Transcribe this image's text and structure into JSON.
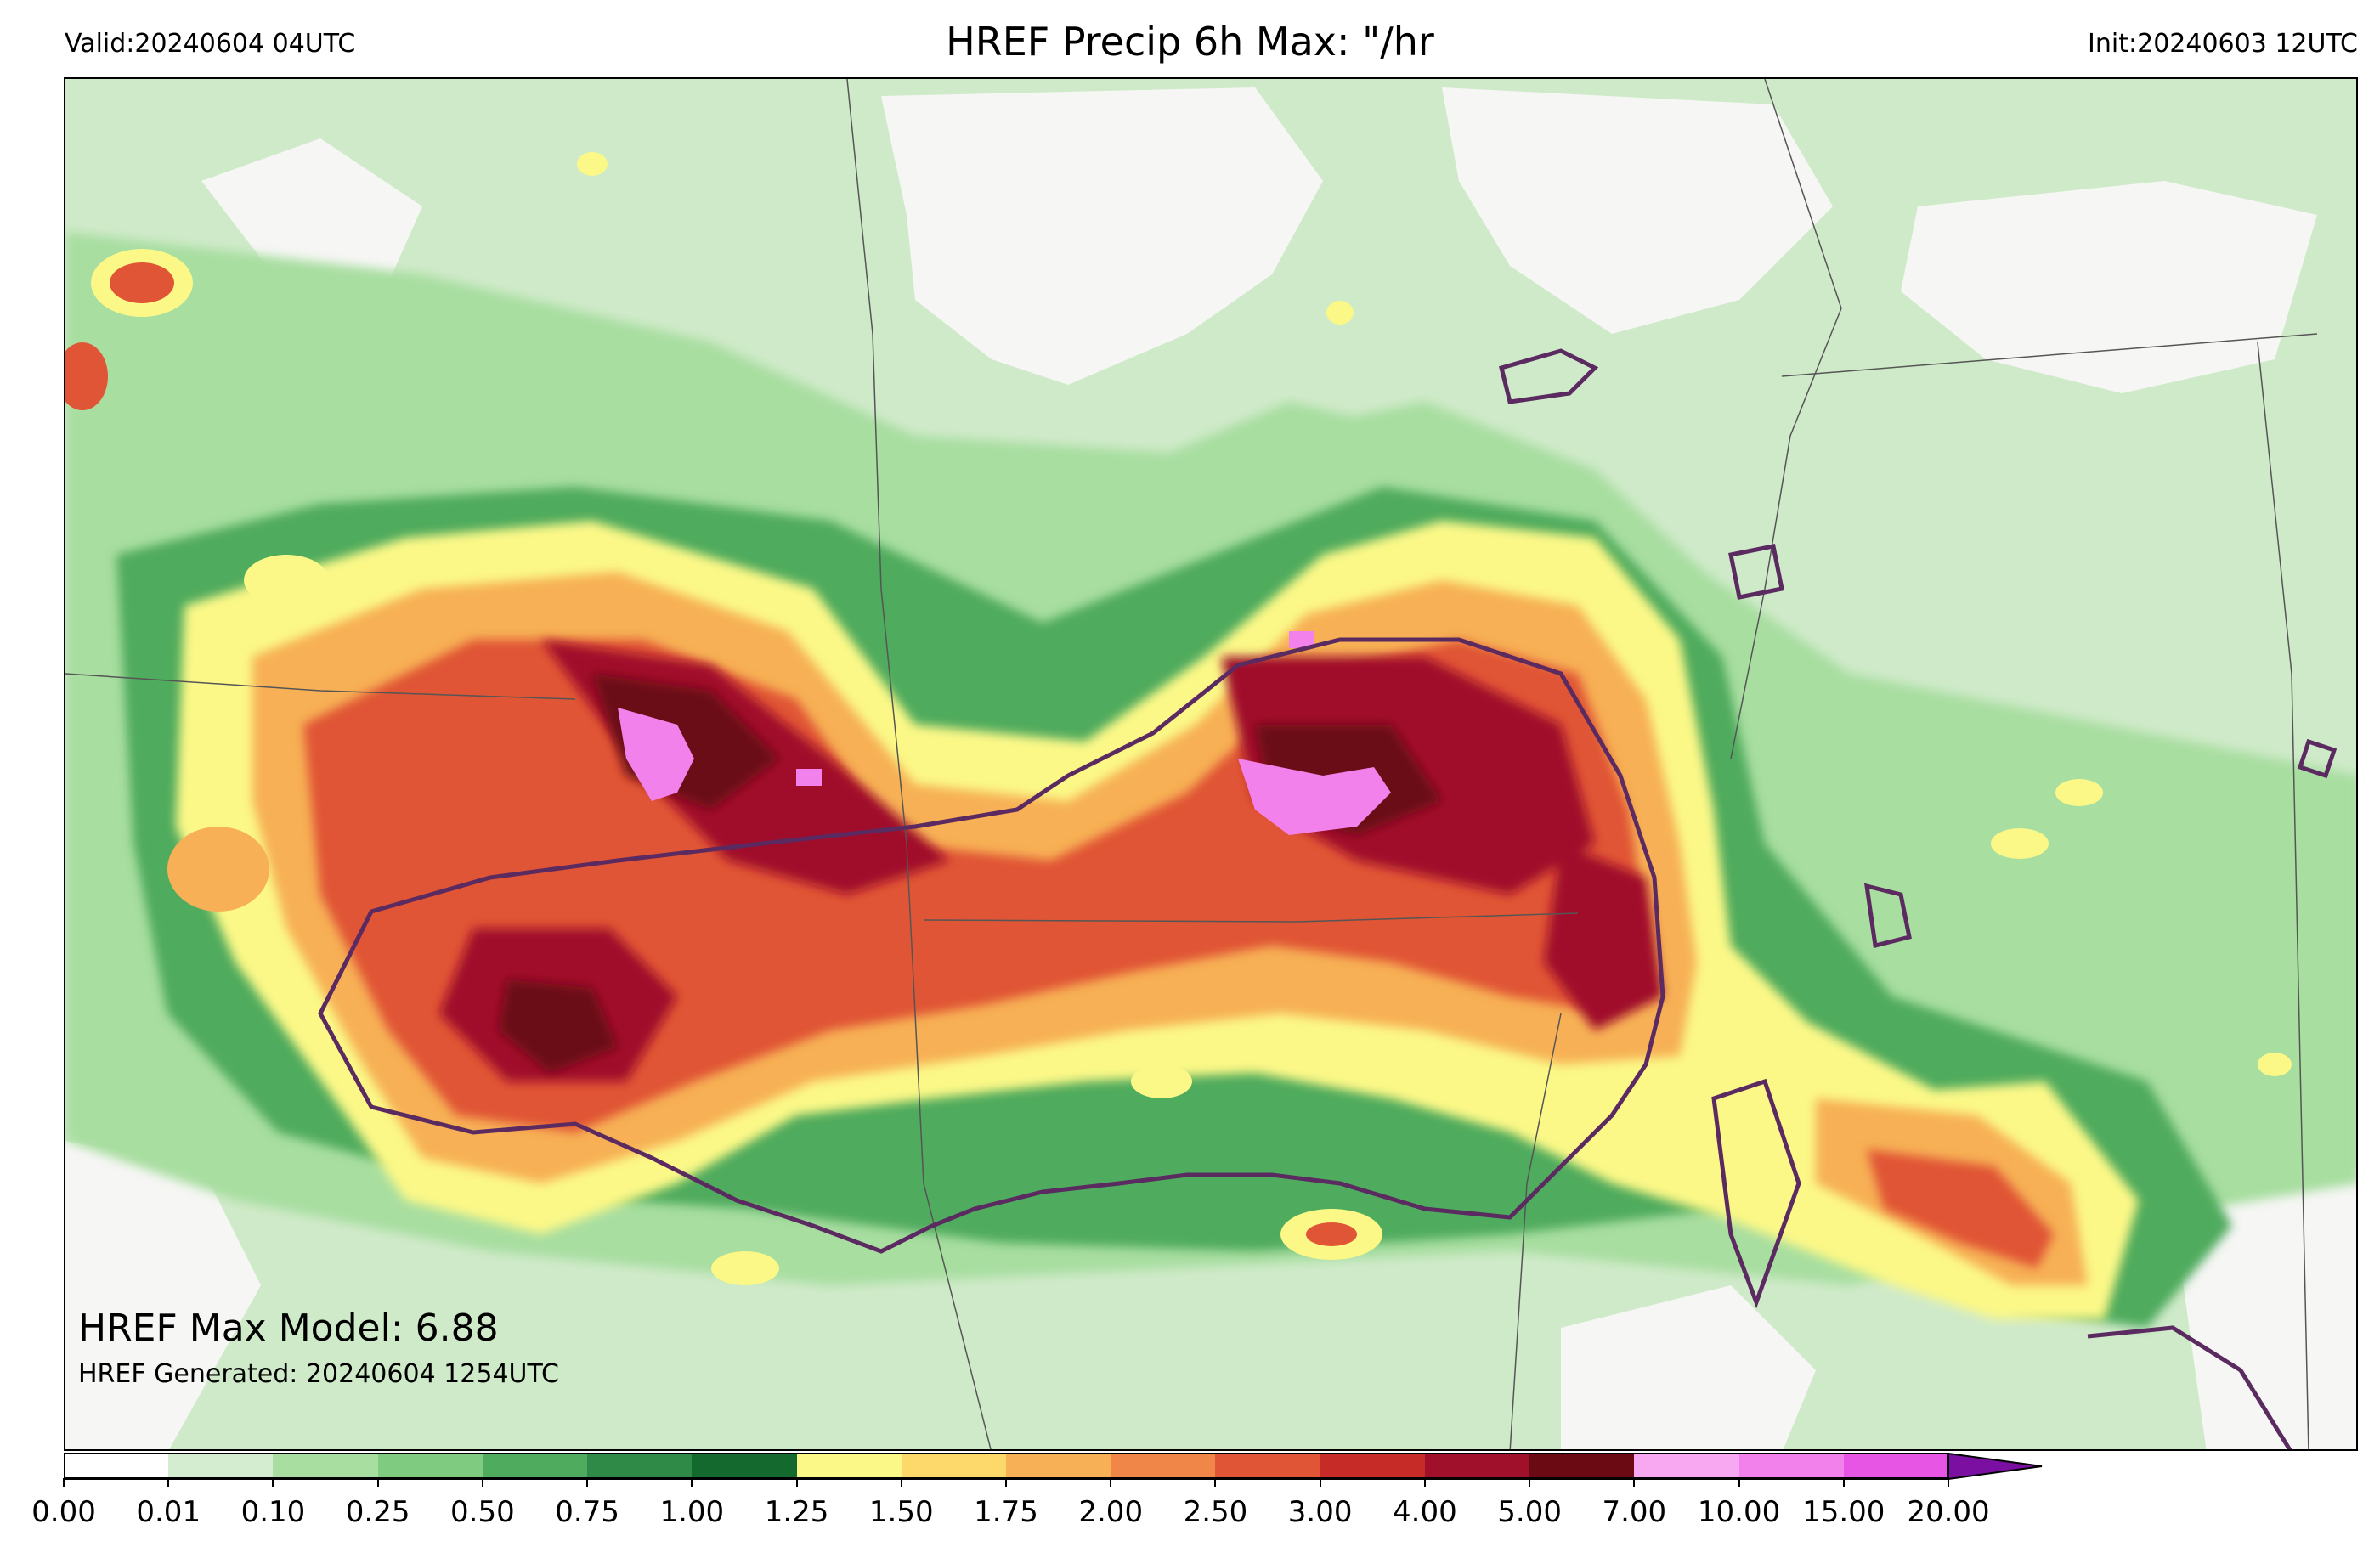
{
  "header": {
    "valid": "Valid:20240604 04UTC",
    "title": "HREF Precip 6h Max: \"/hr",
    "init": "Init:20240603 12UTC"
  },
  "annotations": {
    "max_model": "HREF Max Model: 6.88",
    "generated": "HREF Generated: 20240604 1254UTC"
  },
  "colorbar": {
    "levels": [
      "0.00",
      "0.01",
      "0.10",
      "0.25",
      "0.50",
      "0.75",
      "1.00",
      "1.25",
      "1.50",
      "1.75",
      "2.00",
      "2.50",
      "3.00",
      "4.00",
      "5.00",
      "7.00",
      "10.00",
      "15.00",
      "20.00"
    ],
    "colors": [
      "#ffffff",
      "#d4ecd0",
      "#a8dea0",
      "#7fcb7f",
      "#4fab5d",
      "#2e8a46",
      "#146a2e",
      "#fbf887",
      "#fcd96a",
      "#f7b055",
      "#f08749",
      "#e05535",
      "#c62b27",
      "#a0102a",
      "#6b0a12",
      "#f8a8f0",
      "#f381ec",
      "#e755e4",
      "#d22ad8",
      "#9a1cb8",
      "#7a0fa2"
    ],
    "extend_arrow_color": "#7a0fa2"
  },
  "map": {
    "background_color": "#f6f6f4",
    "contour_color": "#5a2a60",
    "boundary_color": "#555555"
  }
}
